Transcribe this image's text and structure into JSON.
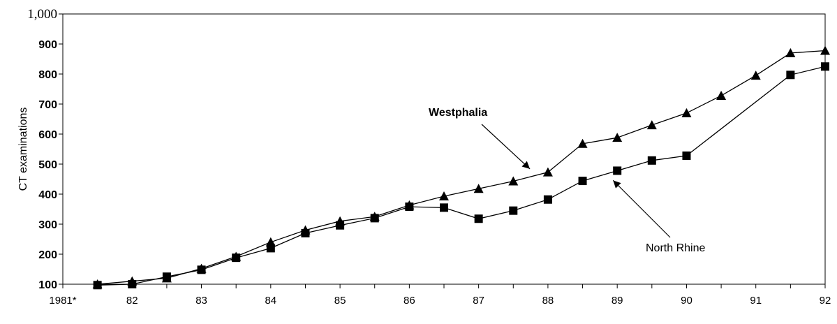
{
  "chart_data": {
    "type": "line",
    "title": "",
    "xlabel": "",
    "ylabel": "CT examinations",
    "ylim": [
      100,
      1000
    ],
    "yticks": [
      100,
      200,
      300,
      400,
      500,
      600,
      700,
      800,
      900,
      1000
    ],
    "ytick_labels": [
      "100",
      "200",
      "300",
      "400",
      "500",
      "600",
      "700",
      "800",
      "900",
      "1,000"
    ],
    "xlim": [
      1981,
      1992
    ],
    "xticks": [
      1981,
      1982,
      1983,
      1984,
      1985,
      1986,
      1987,
      1988,
      1989,
      1990,
      1991,
      1992
    ],
    "xtick_labels": [
      "1981*",
      "82",
      "83",
      "84",
      "85",
      "86",
      "87",
      "88",
      "89",
      "90",
      "91",
      "92"
    ],
    "grid": false,
    "x": [
      1981.5,
      1982,
      1982.5,
      1983,
      1983.5,
      1984,
      1984.5,
      1985,
      1985.5,
      1986,
      1986.5,
      1987,
      1987.5,
      1988,
      1988.5,
      1989,
      1989.5,
      1990,
      1990.5,
      1991,
      1991.5,
      1992
    ],
    "series": [
      {
        "name": "Westphalia",
        "marker": "triangle",
        "x": [
          1981.5,
          1982,
          1982.5,
          1983,
          1983.5,
          1984,
          1984.5,
          1985,
          1985.5,
          1986,
          1986.5,
          1987,
          1987.5,
          1988,
          1988.5,
          1989,
          1989.5,
          1990,
          1990.5,
          1991,
          1991.5,
          1992
        ],
        "values": [
          100,
          110,
          120,
          152,
          192,
          240,
          280,
          310,
          325,
          363,
          393,
          418,
          443,
          473,
          568,
          588,
          630,
          670,
          728,
          795,
          870,
          878
        ]
      },
      {
        "name": "North Rhine",
        "marker": "square",
        "x": [
          1981.5,
          1982,
          1982.5,
          1983,
          1983.5,
          1984,
          1984.5,
          1985,
          1985.5,
          1986,
          1986.5,
          1987,
          1987.5,
          1988,
          1988.5,
          1989,
          1989.5,
          1990,
          1991.5,
          1992
        ],
        "values": [
          97,
          100,
          125,
          148,
          188,
          220,
          270,
          296,
          320,
          358,
          355,
          318,
          345,
          382,
          444,
          478,
          512,
          528,
          797,
          825
        ]
      }
    ],
    "annotations": [
      {
        "text": "Westphalia",
        "target_series": "Westphalia",
        "target_x": 1987.8,
        "target_y": 470
      },
      {
        "text": "North Rhine",
        "target_series": "North Rhine",
        "target_x": 1988.9,
        "target_y": 455
      }
    ]
  }
}
